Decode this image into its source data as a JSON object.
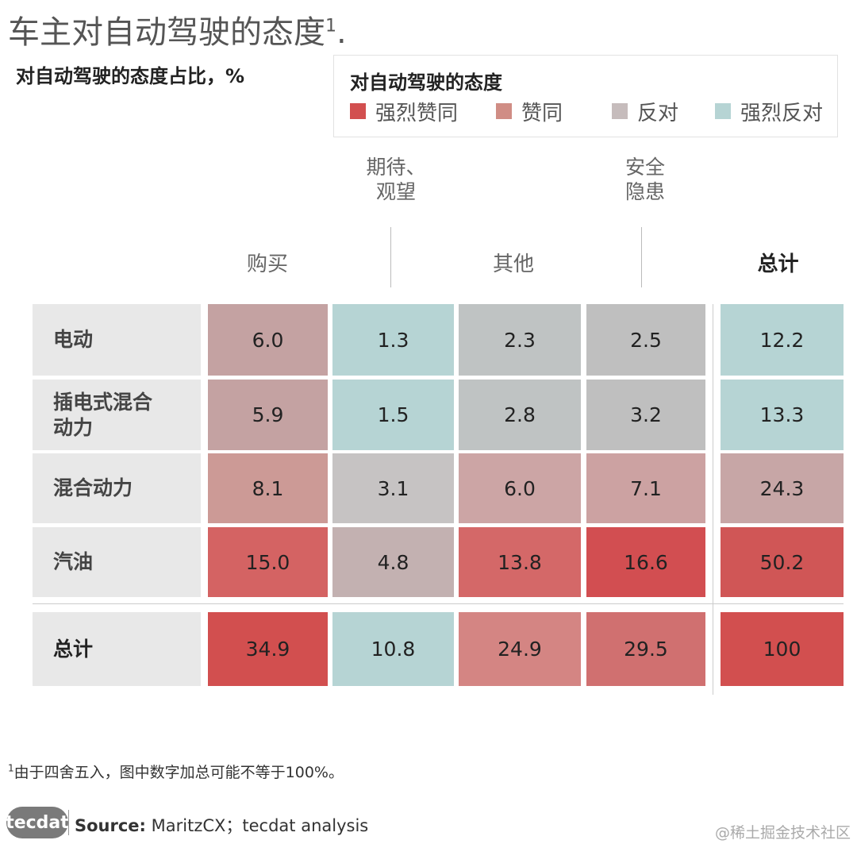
{
  "title": "车主对自动驾驶的态度",
  "title_footnote_mark": "1",
  "title_period": ".",
  "subtitle": "对自动驾驶的态度占比，%",
  "legend": {
    "title": "对自动驾驶的态度",
    "items": [
      {
        "label": "强烈赞同",
        "color": "#d24f4f"
      },
      {
        "label": "赞同",
        "color": "#d08d85"
      },
      {
        "label": "反对",
        "color": "#c6bcbc"
      },
      {
        "label": "强烈反对",
        "color": "#b6d4d4"
      }
    ]
  },
  "column_groups": [
    {
      "label": "购买"
    },
    {
      "label": "其他"
    },
    {
      "label": "总计"
    }
  ],
  "column_notes": [
    "期待、",
    "观望",
    "安全",
    "隐患"
  ],
  "chart_data": {
    "type": "table",
    "title": "车主对自动驾驶的态度",
    "subtitle": "对自动驾驶的态度占比，%",
    "rows": [
      "电动",
      "插电式混合动力",
      "混合动力",
      "汽油",
      "总计"
    ],
    "columns": [
      "购买",
      "期待、观望",
      "其他",
      "安全隐患",
      "总计"
    ],
    "values": [
      [
        "6.0",
        "1.3",
        "2.3",
        "2.5",
        "12.2"
      ],
      [
        "5.9",
        "1.5",
        "2.8",
        "3.2",
        "13.3"
      ],
      [
        "8.1",
        "3.1",
        "6.0",
        "7.1",
        "24.3"
      ],
      [
        "15.0",
        "4.8",
        "13.8",
        "16.6",
        "50.2"
      ],
      [
        "34.9",
        "10.8",
        "24.9",
        "29.5",
        "100"
      ]
    ],
    "colors": [
      [
        "#c4a2a2",
        "#b6d4d4",
        "#bfc3c3",
        "#bfbfbf",
        "#b6d4d4"
      ],
      [
        "#c4a2a2",
        "#b6d4d4",
        "#bfc3c3",
        "#bfbfbf",
        "#b6d4d4"
      ],
      [
        "#cc9a96",
        "#c6c3c3",
        "#cca5a5",
        "#cca2a2",
        "#c7a6a6"
      ],
      [
        "#d46363",
        "#c3b1b1",
        "#d46868",
        "#d24e51",
        "#d05656"
      ],
      [
        "#d24f4f",
        "#b6d4d4",
        "#d48583",
        "#d07070",
        "#d24f4f"
      ]
    ]
  },
  "footnote": "由于四舍五入，图中数字加总可能不等于100%。",
  "footnote_mark": "1",
  "logo": "tecdat",
  "source_label": "Source:",
  "source_text": " MaritzCX；tecdat analysis",
  "watermark": "@稀土掘金技术社区"
}
